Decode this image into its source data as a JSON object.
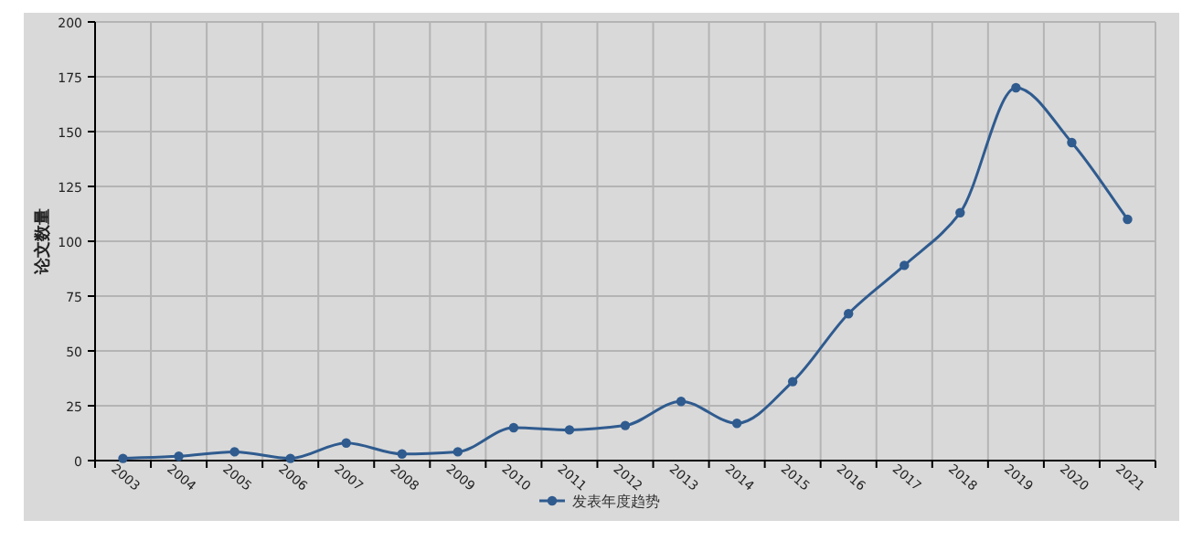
{
  "chart_data": {
    "type": "line",
    "ylabel": "论文数量",
    "categories": [
      "2003",
      "2004",
      "2005",
      "2006",
      "2007",
      "2008",
      "2009",
      "2010",
      "2011",
      "2012",
      "2013",
      "2014",
      "2015",
      "2016",
      "2017",
      "2018",
      "2019",
      "2020",
      "2021"
    ],
    "series": [
      {
        "name": "发表年度趋势",
        "color": "#2f5b8f",
        "values": [
          1,
          2,
          4,
          1,
          8,
          3,
          4,
          15,
          14,
          16,
          27,
          17,
          36,
          67,
          89,
          113,
          170,
          145,
          110
        ]
      }
    ],
    "ylim": [
      0,
      200
    ],
    "yticks": [
      0,
      25,
      50,
      75,
      100,
      125,
      150,
      175,
      200
    ],
    "grid": true,
    "legend": "bottom",
    "marker": "circle",
    "line_style": "solid"
  }
}
